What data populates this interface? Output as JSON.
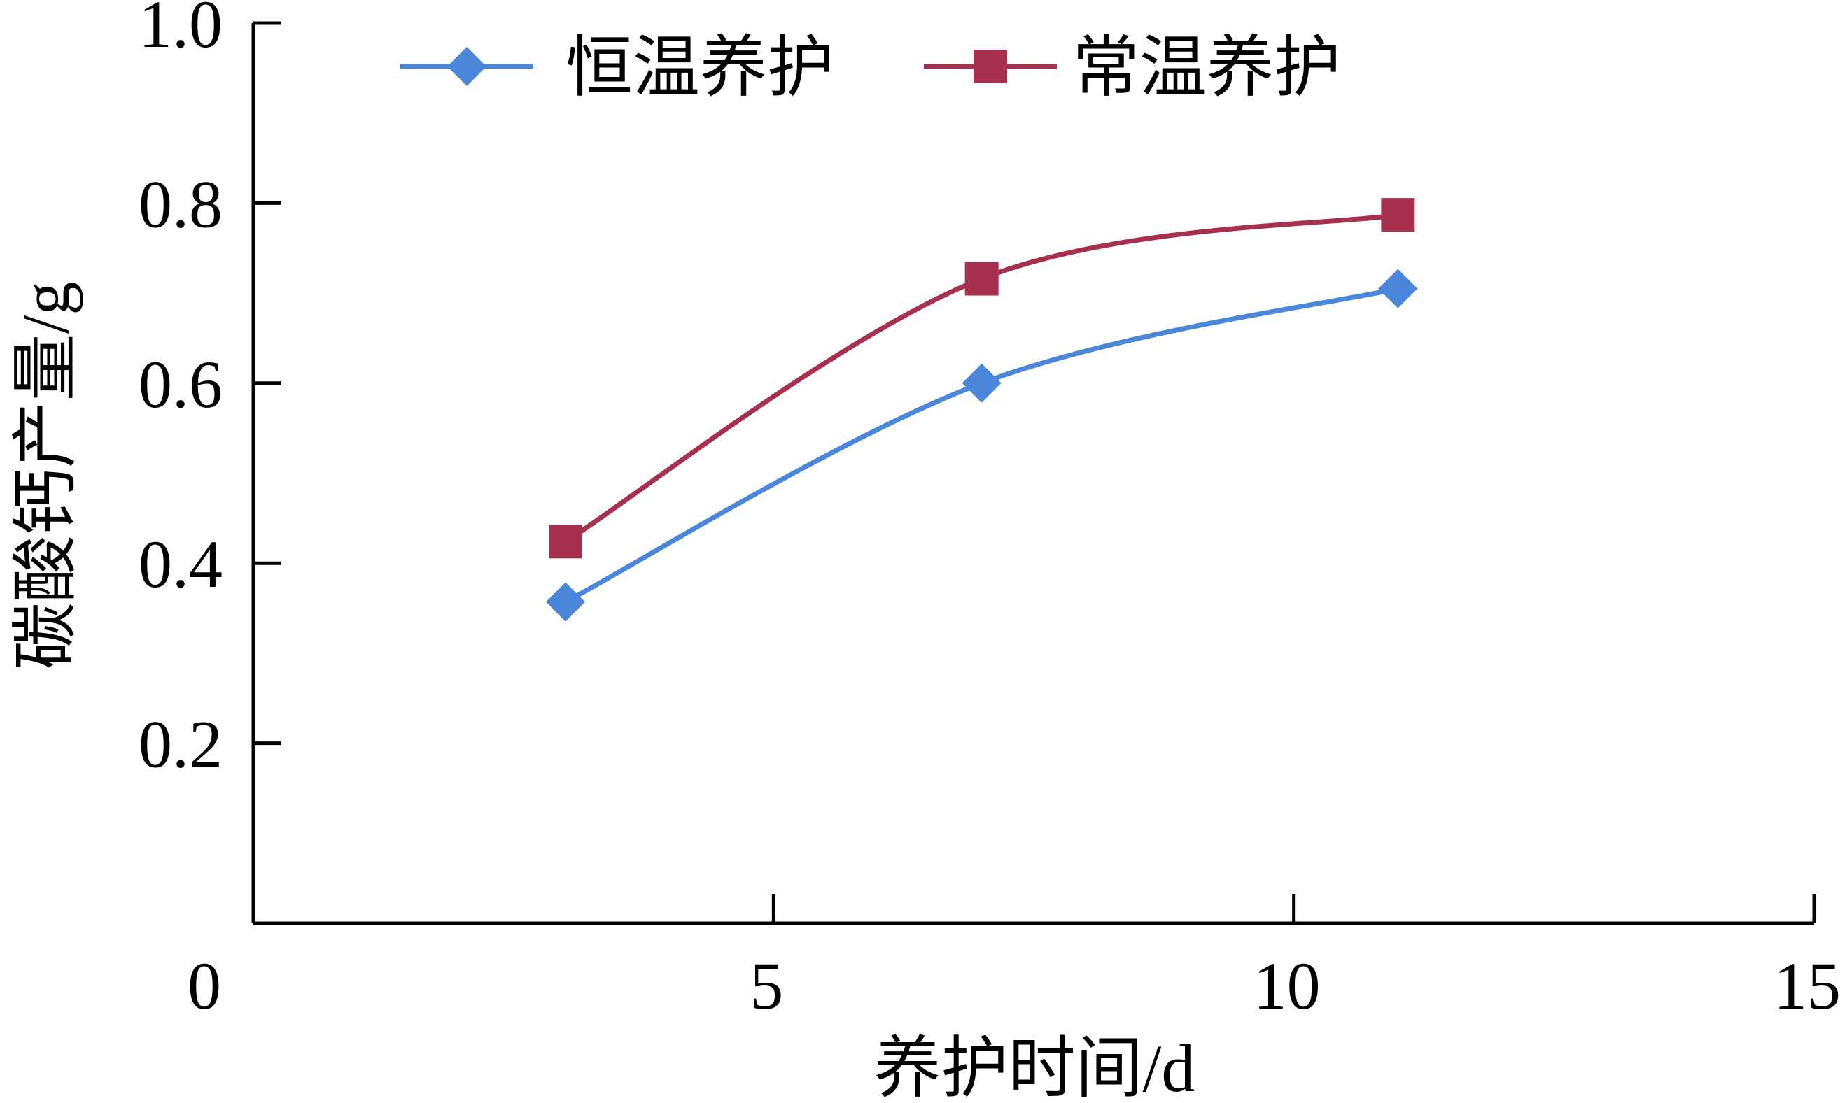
{
  "chart_data": {
    "type": "line",
    "xlabel": "养护时间/d",
    "ylabel": "碳酸钙产量/g",
    "xlim": [
      0,
      15
    ],
    "ylim": [
      0,
      1.0
    ],
    "xticks": [
      0,
      5,
      10,
      15
    ],
    "xtick_labels": [
      "0",
      "5",
      "10",
      "15"
    ],
    "yticks": [
      0.2,
      0.4,
      0.6,
      0.8,
      1.0
    ],
    "ytick_labels": [
      "0.2",
      "0.4",
      "0.6",
      "0.8",
      "1.0"
    ],
    "grid": false,
    "legend_position": "top",
    "x": [
      3,
      7,
      11
    ],
    "series": [
      {
        "name": "恒温养护",
        "values": [
          0.357,
          0.6,
          0.705
        ],
        "color": "#4A86D9",
        "marker": "diamond"
      },
      {
        "name": "常温养护",
        "values": [
          0.424,
          0.716,
          0.787
        ],
        "color": "#A8304F",
        "marker": "square"
      }
    ]
  }
}
